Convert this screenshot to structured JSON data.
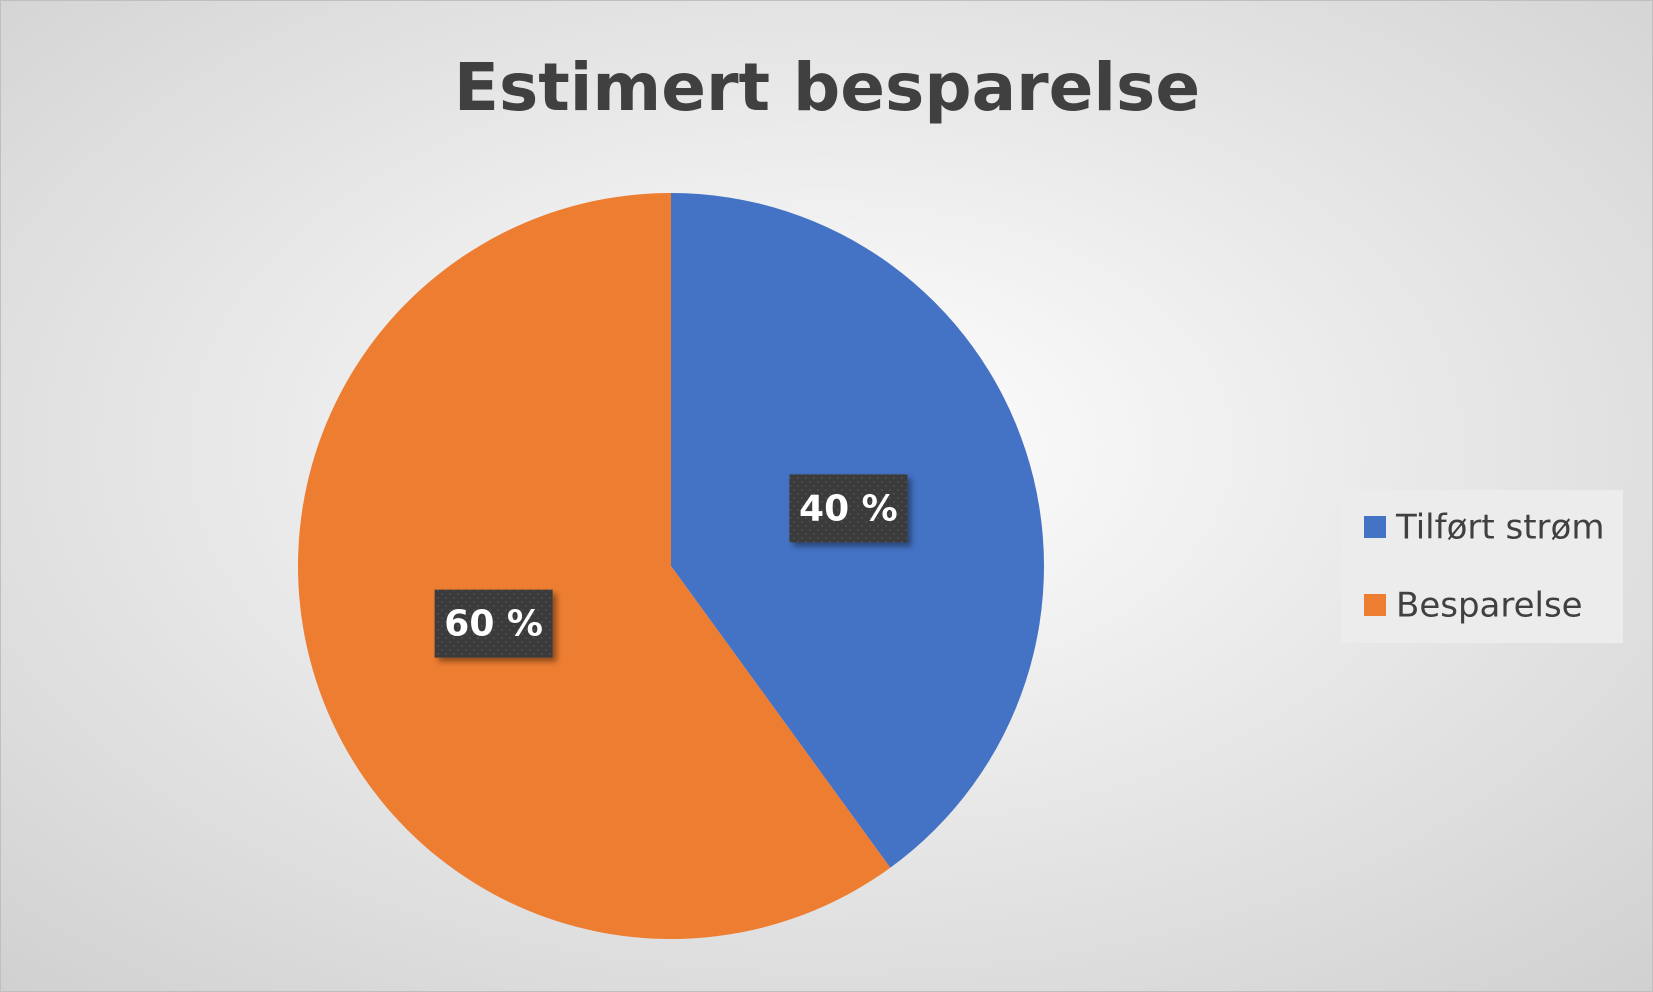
{
  "chart_data": {
    "type": "pie",
    "title": "Estimert besparelse",
    "categories": [
      "Tilført strøm",
      "Besparelse"
    ],
    "values": [
      40,
      60
    ],
    "value_labels": [
      "40 %",
      "60 %"
    ],
    "colors": [
      "#4472c4",
      "#ed7d31"
    ],
    "legend": "right"
  }
}
